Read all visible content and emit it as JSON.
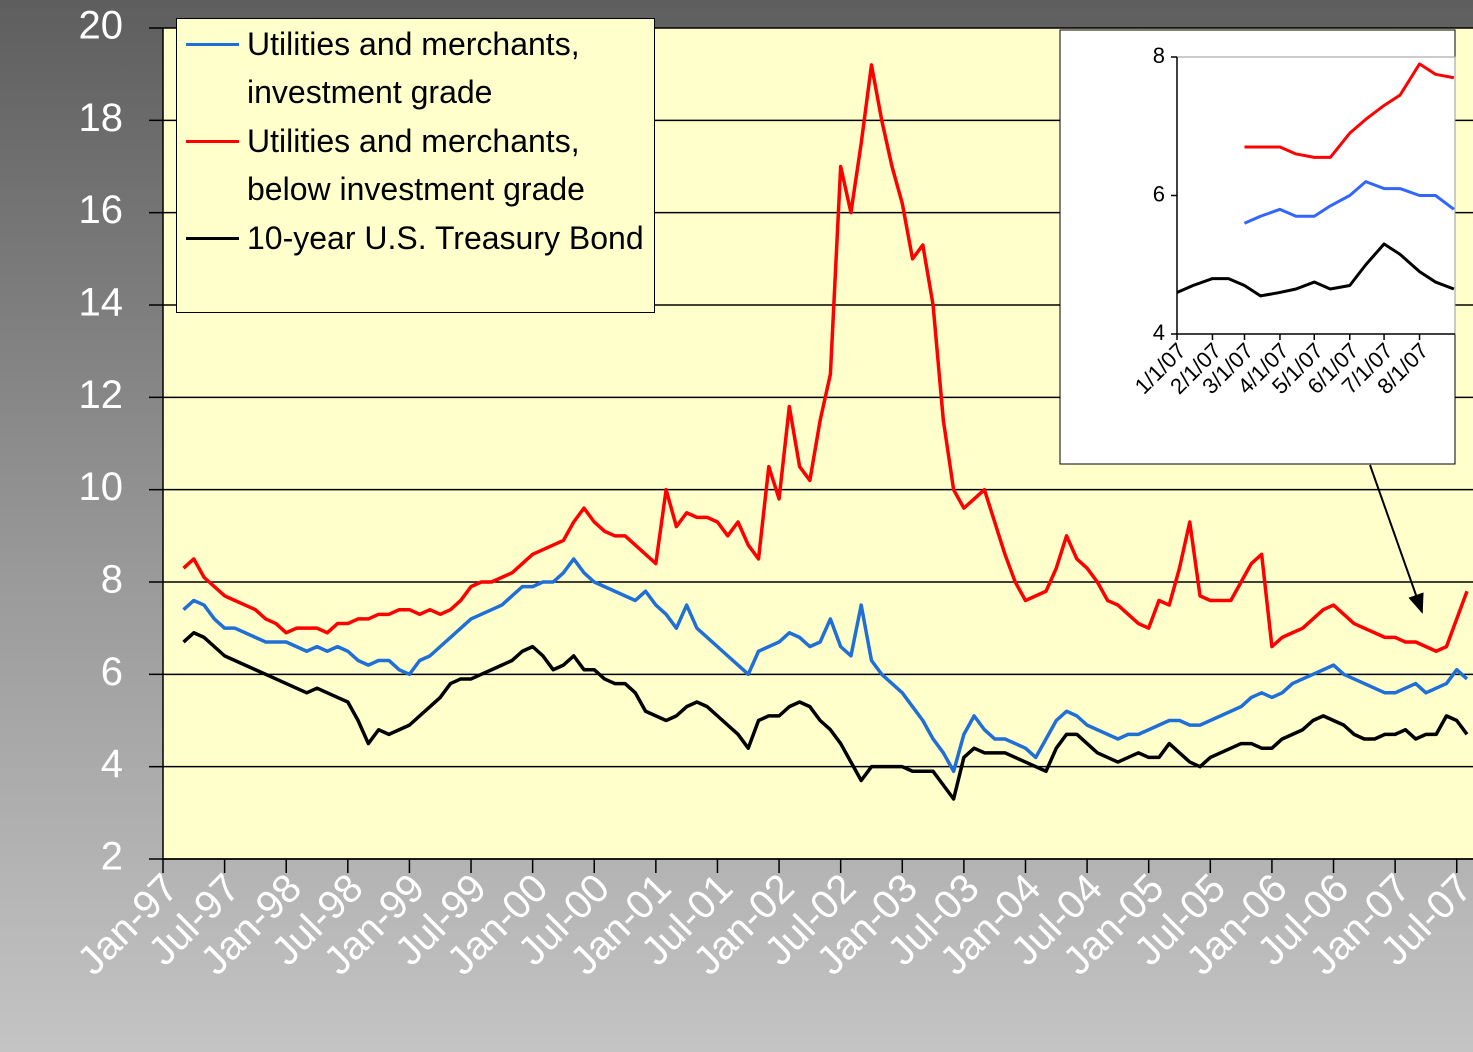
{
  "chart_data": [
    {
      "type": "line",
      "x": [
        "Mar-97",
        "Apr-97",
        "May-97",
        "Jun-97",
        "Jul-97",
        "Aug-97",
        "Sep-97",
        "Oct-97",
        "Nov-97",
        "Dec-97",
        "Jan-98",
        "Feb-98",
        "Mar-98",
        "Apr-98",
        "May-98",
        "Jun-98",
        "Jul-98",
        "Aug-98",
        "Sep-98",
        "Oct-98",
        "Nov-98",
        "Dec-98",
        "Jan-99",
        "Feb-99",
        "Mar-99",
        "Apr-99",
        "May-99",
        "Jun-99",
        "Jul-99",
        "Aug-99",
        "Sep-99",
        "Oct-99",
        "Nov-99",
        "Dec-99",
        "Jan-00",
        "Feb-00",
        "Mar-00",
        "Apr-00",
        "May-00",
        "Jun-00",
        "Jul-00",
        "Aug-00",
        "Sep-00",
        "Oct-00",
        "Nov-00",
        "Dec-00",
        "Jan-01",
        "Feb-01",
        "Mar-01",
        "Apr-01",
        "May-01",
        "Jun-01",
        "Jul-01",
        "Aug-01",
        "Sep-01",
        "Oct-01",
        "Nov-01",
        "Dec-01",
        "Jan-02",
        "Feb-02",
        "Mar-02",
        "Apr-02",
        "May-02",
        "Jun-02",
        "Jul-02",
        "Aug-02",
        "Sep-02",
        "Oct-02",
        "Nov-02",
        "Dec-02",
        "Jan-03",
        "Feb-03",
        "Mar-03",
        "Apr-03",
        "May-03",
        "Jun-03",
        "Jul-03",
        "Aug-03",
        "Sep-03",
        "Oct-03",
        "Nov-03",
        "Dec-03",
        "Jan-04",
        "Feb-04",
        "Mar-04",
        "Apr-04",
        "May-04",
        "Jun-04",
        "Jul-04",
        "Aug-04",
        "Sep-04",
        "Oct-04",
        "Nov-04",
        "Dec-04",
        "Jan-05",
        "Feb-05",
        "Mar-05",
        "Apr-05",
        "May-05",
        "Jun-05",
        "Jul-05",
        "Aug-05",
        "Sep-05",
        "Oct-05",
        "Nov-05",
        "Dec-05",
        "Jan-06",
        "Feb-06",
        "Mar-06",
        "Apr-06",
        "May-06",
        "Jun-06",
        "Jul-06",
        "Aug-06",
        "Sep-06",
        "Oct-06",
        "Nov-06",
        "Dec-06",
        "Jan-07",
        "Feb-07",
        "Mar-07",
        "Apr-07",
        "May-07",
        "Jun-07",
        "Jul-07",
        "Aug-07"
      ],
      "series": [
        {
          "name": "Utilities and merchants, investment grade",
          "color": "#1f6fd6",
          "values": [
            7.4,
            7.6,
            7.5,
            7.2,
            7.0,
            7.0,
            6.9,
            6.8,
            6.7,
            6.7,
            6.7,
            6.6,
            6.5,
            6.6,
            6.5,
            6.6,
            6.5,
            6.3,
            6.2,
            6.3,
            6.3,
            6.1,
            6.0,
            6.3,
            6.4,
            6.6,
            6.8,
            7.0,
            7.2,
            7.3,
            7.4,
            7.5,
            7.7,
            7.9,
            7.9,
            8.0,
            8.0,
            8.2,
            8.5,
            8.2,
            8.0,
            7.9,
            7.8,
            7.7,
            7.6,
            7.8,
            7.5,
            7.3,
            7.0,
            7.5,
            7.0,
            6.8,
            6.6,
            6.4,
            6.2,
            6.0,
            6.5,
            6.6,
            6.7,
            6.9,
            6.8,
            6.6,
            6.7,
            7.2,
            6.6,
            6.4,
            7.5,
            6.3,
            6.0,
            5.8,
            5.6,
            5.3,
            5.0,
            4.6,
            4.3,
            3.9,
            4.7,
            5.1,
            4.8,
            4.6,
            4.6,
            4.5,
            4.4,
            4.2,
            4.6,
            5.0,
            5.2,
            5.1,
            4.9,
            4.8,
            4.7,
            4.6,
            4.7,
            4.7,
            4.8,
            4.9,
            5.0,
            5.0,
            4.9,
            4.9,
            5.0,
            5.1,
            5.2,
            5.3,
            5.5,
            5.6,
            5.5,
            5.6,
            5.8,
            5.9,
            6.0,
            6.1,
            6.2,
            6.0,
            5.9,
            5.8,
            5.7,
            5.6,
            5.6,
            5.7,
            5.8,
            5.6,
            5.7,
            5.8,
            6.1,
            5.9
          ]
        },
        {
          "name": "Utilities and merchants, below investment grade",
          "color": "#ff0000",
          "values": [
            8.3,
            8.5,
            8.1,
            7.9,
            7.7,
            7.6,
            7.5,
            7.4,
            7.2,
            7.1,
            6.9,
            7.0,
            7.0,
            7.0,
            6.9,
            7.1,
            7.1,
            7.2,
            7.2,
            7.3,
            7.3,
            7.4,
            7.4,
            7.3,
            7.4,
            7.3,
            7.4,
            7.6,
            7.9,
            8.0,
            8.0,
            8.1,
            8.2,
            8.4,
            8.6,
            8.7,
            8.8,
            8.9,
            9.3,
            9.6,
            9.3,
            9.1,
            9.0,
            9.0,
            8.8,
            8.6,
            8.4,
            10.0,
            9.2,
            9.5,
            9.4,
            9.4,
            9.3,
            9.0,
            9.3,
            8.8,
            8.5,
            10.5,
            9.8,
            11.8,
            10.5,
            10.2,
            11.5,
            12.5,
            17.0,
            16.0,
            17.5,
            19.2,
            18.0,
            17.0,
            16.2,
            15.0,
            15.3,
            14.0,
            11.5,
            10.0,
            9.6,
            9.8,
            10.0,
            9.3,
            8.6,
            8.0,
            7.6,
            7.7,
            7.8,
            8.3,
            9.0,
            8.5,
            8.3,
            8.0,
            7.6,
            7.5,
            7.3,
            7.1,
            7.0,
            7.6,
            7.5,
            8.3,
            9.3,
            7.7,
            7.6,
            7.6,
            7.6,
            8.0,
            8.4,
            8.6,
            6.6,
            6.8,
            6.9,
            7.0,
            7.2,
            7.4,
            7.5,
            7.3,
            7.1,
            7.0,
            6.9,
            6.8,
            6.8,
            6.7,
            6.7,
            6.6,
            6.5,
            6.6,
            7.2,
            7.8
          ]
        },
        {
          "name": "10-year U.S. Treasury Bond",
          "color": "#000000",
          "values": [
            6.7,
            6.9,
            6.8,
            6.6,
            6.4,
            6.3,
            6.2,
            6.1,
            6.0,
            5.9,
            5.8,
            5.7,
            5.6,
            5.7,
            5.6,
            5.5,
            5.4,
            5.0,
            4.5,
            4.8,
            4.7,
            4.8,
            4.9,
            5.1,
            5.3,
            5.5,
            5.8,
            5.9,
            5.9,
            6.0,
            6.1,
            6.2,
            6.3,
            6.5,
            6.6,
            6.4,
            6.1,
            6.2,
            6.4,
            6.1,
            6.1,
            5.9,
            5.8,
            5.8,
            5.6,
            5.2,
            5.1,
            5.0,
            5.1,
            5.3,
            5.4,
            5.3,
            5.1,
            4.9,
            4.7,
            4.4,
            5.0,
            5.1,
            5.1,
            5.3,
            5.4,
            5.3,
            5.0,
            4.8,
            4.5,
            4.1,
            3.7,
            4.0,
            4.0,
            4.0,
            4.0,
            3.9,
            3.9,
            3.9,
            3.6,
            3.3,
            4.2,
            4.4,
            4.3,
            4.3,
            4.3,
            4.2,
            4.1,
            4.0,
            3.9,
            4.4,
            4.7,
            4.7,
            4.5,
            4.3,
            4.2,
            4.1,
            4.2,
            4.3,
            4.2,
            4.2,
            4.5,
            4.3,
            4.1,
            4.0,
            4.2,
            4.3,
            4.4,
            4.5,
            4.5,
            4.4,
            4.4,
            4.6,
            4.7,
            4.8,
            5.0,
            5.1,
            5.0,
            4.9,
            4.7,
            4.6,
            4.6,
            4.7,
            4.7,
            4.8,
            4.6,
            4.7,
            4.7,
            5.1,
            5.0,
            4.7
          ]
        }
      ],
      "xlim": [
        "Jan-97",
        "Aug-07"
      ],
      "xticks": [
        "Jan-97",
        "Jul-97",
        "Jan-98",
        "Jul-98",
        "Jan-99",
        "Jul-99",
        "Jan-00",
        "Jul-00",
        "Jan-01",
        "Jul-01",
        "Jan-02",
        "Jul-02",
        "Jan-03",
        "Jul-03",
        "Jan-04",
        "Jul-04",
        "Jan-05",
        "Jul-05",
        "Jan-06",
        "Jul-06",
        "Jan-07",
        "Jul-07"
      ],
      "ylim": [
        2,
        20
      ],
      "yticks": [
        2,
        4,
        6,
        8,
        10,
        12,
        14,
        16,
        18,
        20
      ],
      "grid": true,
      "legend": "upper left"
    },
    {
      "type": "line",
      "x": [
        "1/1/07",
        "1/15/07",
        "2/1/07",
        "2/15/07",
        "3/1/07",
        "3/15/07",
        "4/1/07",
        "4/15/07",
        "5/1/07",
        "5/15/07",
        "6/1/07",
        "6/15/07",
        "7/1/07",
        "7/15/07",
        "8/1/07",
        "8/15/07",
        "8/31/07"
      ],
      "series": [
        {
          "color": "#ff0000",
          "values": [
            null,
            null,
            null,
            null,
            6.7,
            6.7,
            6.7,
            6.6,
            6.55,
            6.55,
            6.9,
            7.1,
            7.3,
            7.45,
            7.9,
            7.75,
            7.7
          ]
        },
        {
          "color": "#3366ff",
          "values": [
            null,
            null,
            null,
            null,
            5.6,
            5.7,
            5.8,
            5.7,
            5.7,
            5.85,
            6.0,
            6.2,
            6.1,
            6.1,
            6.0,
            6.0,
            5.8
          ]
        },
        {
          "color": "#000000",
          "values": [
            4.6,
            4.7,
            4.8,
            4.8,
            4.7,
            4.55,
            4.6,
            4.65,
            4.75,
            4.65,
            4.7,
            5.0,
            5.3,
            5.15,
            4.9,
            4.75,
            4.65
          ]
        }
      ],
      "xlim": [
        "1/1/07",
        "9/1/07"
      ],
      "xticks": [
        "1/1/07",
        "2/1/07",
        "3/1/07",
        "4/1/07",
        "5/1/07",
        "6/1/07",
        "7/1/07",
        "8/1/07"
      ],
      "ylim": [
        4,
        8
      ],
      "yticks": [
        4,
        6,
        8
      ]
    }
  ]
}
